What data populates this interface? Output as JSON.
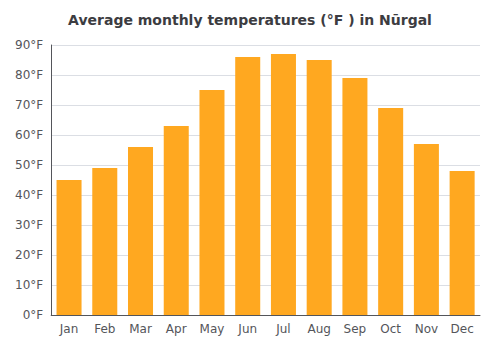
{
  "chart_data": {
    "type": "bar",
    "title": "Average monthly temperatures (°F ) in Nūrgal",
    "categories": [
      "Jan",
      "Feb",
      "Mar",
      "Apr",
      "May",
      "Jun",
      "Jul",
      "Aug",
      "Sep",
      "Oct",
      "Nov",
      "Dec"
    ],
    "values": [
      45,
      49,
      56,
      63,
      75,
      86,
      87,
      85,
      79,
      69,
      57,
      48
    ],
    "color": "#FFA820",
    "ylim": [
      0,
      90
    ],
    "yticks": [
      {
        "value": 0,
        "label": "0°F"
      },
      {
        "value": 10,
        "label": "10°F"
      },
      {
        "value": 20,
        "label": "20°F"
      },
      {
        "value": 30,
        "label": "30°F"
      },
      {
        "value": 40,
        "label": "40°F"
      },
      {
        "value": 50,
        "label": "50°F"
      },
      {
        "value": 60,
        "label": "60°F"
      },
      {
        "value": 70,
        "label": "70°F"
      },
      {
        "value": 80,
        "label": "80°F"
      },
      {
        "value": 90,
        "label": "90°F"
      }
    ],
    "grid": true
  }
}
